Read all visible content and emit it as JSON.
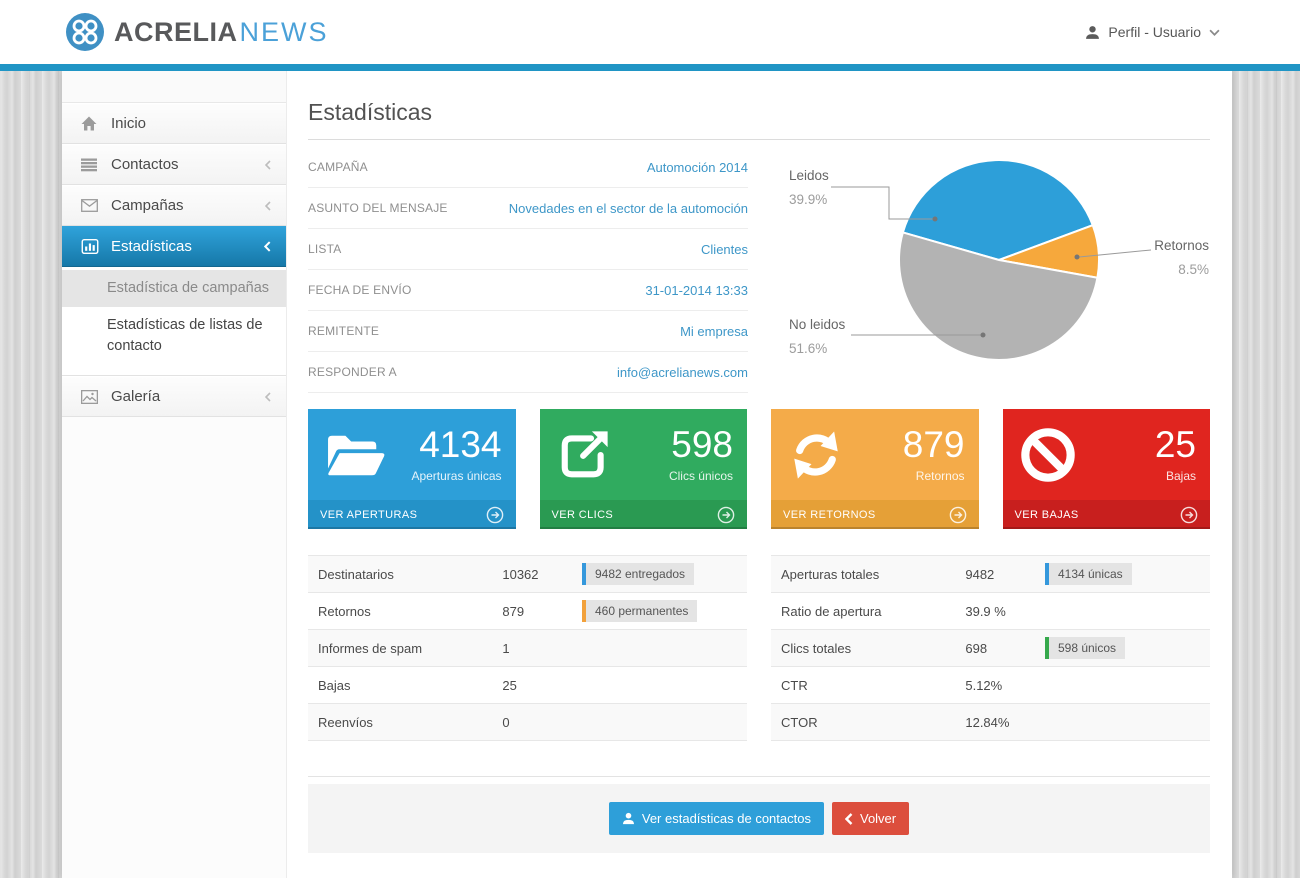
{
  "header": {
    "brand_name": "ACRELIA",
    "brand_suffix": "NEWS",
    "profile_label": "Perfil - Usuario"
  },
  "sidebar": {
    "items": [
      {
        "label": "Inicio"
      },
      {
        "label": "Contactos"
      },
      {
        "label": "Campañas"
      },
      {
        "label": "Estadísticas"
      }
    ],
    "subitems": [
      {
        "label": "Estadística de campañas"
      },
      {
        "label": "Estadísticas de listas de contacto"
      }
    ],
    "gallery_label": "Galería"
  },
  "page": {
    "title": "Estadísticas",
    "details": [
      {
        "label": "CAMPAÑA",
        "value": "Automoción 2014"
      },
      {
        "label": "ASUNTO DEL MENSAJE",
        "value": "Novedades en el sector de la automoción"
      },
      {
        "label": "LISTA",
        "value": "Clientes"
      },
      {
        "label": "FECHA DE ENVÍO",
        "value": "31-01-2014 13:33"
      },
      {
        "label": "REMITENTE",
        "value": "Mi empresa"
      },
      {
        "label": "RESPONDER A",
        "value": "info@acrelianews.com"
      }
    ],
    "cards": [
      {
        "value": "4134",
        "label": "Aperturas únicas",
        "action": "VER APERTURAS",
        "color": "#2d9fd9",
        "footer_color": "#2492c8",
        "icon": "folder-open-icon"
      },
      {
        "value": "598",
        "label": "Clics únicos",
        "action": "VER CLICS",
        "color": "#30ab5f",
        "footer_color": "#2a9a52",
        "icon": "external-link-icon"
      },
      {
        "value": "879",
        "label": "Retornos",
        "action": "VER RETORNOS",
        "color": "#f4ab49",
        "footer_color": "#e5a037",
        "icon": "refresh-icon"
      },
      {
        "value": "25",
        "label": "Bajas",
        "action": "VER BAJAS",
        "color": "#e0251f",
        "footer_color": "#c81f1e",
        "icon": "ban-icon"
      }
    ],
    "table_left": {
      "rows": [
        {
          "label": "Destinatarios",
          "value": "10362",
          "badge": "9482 entregados",
          "badge_color": "#3598dc"
        },
        {
          "label": "Retornos",
          "value": "879",
          "badge": "460 permanentes",
          "badge_color": "#f2a13c"
        },
        {
          "label": "Informes de spam",
          "value": "1"
        },
        {
          "label": "Bajas",
          "value": "25"
        },
        {
          "label": "Reenvíos",
          "value": "0"
        }
      ]
    },
    "table_right": {
      "rows": [
        {
          "label": "Aperturas totales",
          "value": "9482",
          "badge": "4134 únicas",
          "badge_color": "#3598dc"
        },
        {
          "label": "Ratio de apertura",
          "value": "39.9 %"
        },
        {
          "label": "Clics totales",
          "value": "698",
          "badge": "598 únicos",
          "badge_color": "#36a94c"
        },
        {
          "label": "CTR",
          "value": "5.12%"
        },
        {
          "label": "CTOR",
          "value": "12.84%"
        }
      ]
    },
    "actions": {
      "stats_button": "Ver estadísticas de contactos",
      "back_button": "Volver",
      "stats_color": "#2e9fd9",
      "back_color": "#dc4e3d"
    }
  },
  "chart_data": {
    "type": "pie",
    "title": "",
    "slices": [
      {
        "label": "Leidos",
        "value": 39.9,
        "pct_label": "39.9%",
        "color": "#2d9fd9"
      },
      {
        "label": "Retornos",
        "value": 8.5,
        "pct_label": "8.5%",
        "color": "#f6a83c"
      },
      {
        "label": "No leidos",
        "value": 51.6,
        "pct_label": "51.6%",
        "color": "#b3b3b3"
      }
    ],
    "start_angle_clockwise_from_top_deg": 286,
    "legend_position": "callout"
  }
}
